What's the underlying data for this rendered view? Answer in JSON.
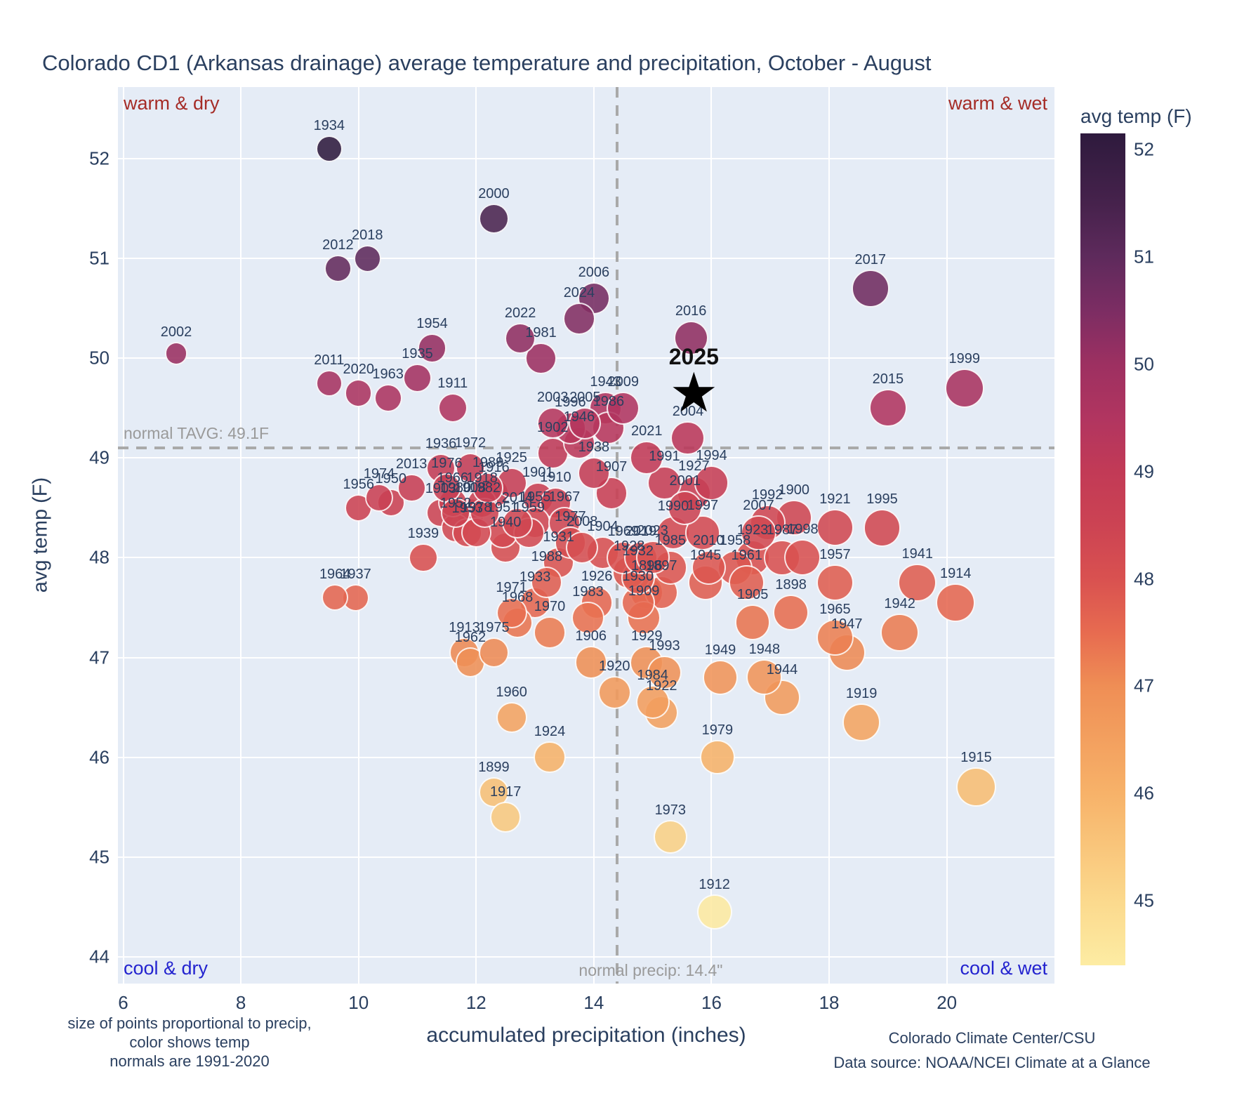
{
  "title": "Colorado CD1 (Arkansas drainage) average temperature and precipitation, October - August",
  "corner_labels": {
    "top_left": "warm & dry",
    "top_right": "warm & wet",
    "bottom_left": "cool & dry",
    "bottom_right": "cool & wet"
  },
  "annotations": {
    "normal_tavg_label": "normal TAVG: 49.1F",
    "normal_precip_label": "normal precip: 14.4\"",
    "star_label": "2025"
  },
  "axes": {
    "x_title": "accumulated precipitation (inches)",
    "y_title": "avg temp (F)",
    "x_ticks": [
      6,
      8,
      10,
      12,
      14,
      16,
      18,
      20
    ],
    "y_ticks": [
      52,
      51,
      50,
      49,
      48,
      47,
      46,
      45,
      44
    ]
  },
  "colorbar": {
    "title": "avg temp (F)",
    "ticks": [
      52,
      51,
      50,
      49,
      48,
      47,
      46,
      45
    ],
    "min": 44.4,
    "max": 52.15,
    "stops": [
      [
        44.4,
        "#fdeca3"
      ],
      [
        45.0,
        "#fbd98d"
      ],
      [
        46.0,
        "#f7b269"
      ],
      [
        47.0,
        "#ef8e55"
      ],
      [
        47.5,
        "#e76b50"
      ],
      [
        48.0,
        "#d95150"
      ],
      [
        48.5,
        "#cc4353"
      ],
      [
        49.0,
        "#c23a56"
      ],
      [
        49.5,
        "#b13560"
      ],
      [
        50.0,
        "#9d3061"
      ],
      [
        50.5,
        "#7c2d63"
      ],
      [
        51.0,
        "#5e2a5c"
      ],
      [
        51.5,
        "#46224c"
      ],
      [
        52.15,
        "#2e1a3d"
      ]
    ]
  },
  "footnotes": {
    "line1": "size of points proportional to precip,",
    "line2": "color shows temp",
    "line3": "normals are 1991-2020"
  },
  "credits": {
    "line1": "Colorado Climate Center/CSU",
    "line2": "Data source: NOAA/NCEI Climate at a Glance"
  },
  "chart_data": {
    "type": "scatter",
    "title": "Colorado CD1 (Arkansas drainage) average temperature and precipitation, October - August",
    "xlabel": "accumulated precipitation (inches)",
    "ylabel": "avg temp (F)",
    "xlim": [
      5.91,
      21.83
    ],
    "ylim": [
      43.73,
      52.72
    ],
    "grid": true,
    "normal_tavg": 49.1,
    "normal_precip": 14.4,
    "color_by": "temp_f",
    "size_by": "precip_in",
    "star": {
      "year": 2025,
      "precip_in": 15.7,
      "temp_f": 49.7
    },
    "columns": [
      "year",
      "precip_in",
      "temp_f"
    ],
    "points": [
      [
        1896,
        14.9,
        47.65
      ],
      [
        1897,
        15.15,
        47.65
      ],
      [
        1898,
        17.35,
        47.45
      ],
      [
        1899,
        12.3,
        45.65
      ],
      [
        1900,
        17.4,
        48.4
      ],
      [
        1901,
        13.05,
        48.6
      ],
      [
        1902,
        13.3,
        49.05
      ],
      [
        1903,
        11.4,
        48.45
      ],
      [
        1904,
        14.15,
        48.05
      ],
      [
        1905,
        16.7,
        47.35
      ],
      [
        1906,
        13.95,
        46.95
      ],
      [
        1907,
        14.3,
        48.65
      ],
      [
        1908,
        11.9,
        48.45
      ],
      [
        1909,
        14.85,
        47.4
      ],
      [
        1910,
        13.35,
        48.55
      ],
      [
        1911,
        11.6,
        49.5
      ],
      [
        1912,
        16.05,
        44.45
      ],
      [
        1913,
        11.8,
        47.05
      ],
      [
        1914,
        20.15,
        47.55
      ],
      [
        1915,
        20.5,
        45.7
      ],
      [
        1916,
        12.3,
        48.65
      ],
      [
        1917,
        12.5,
        45.4
      ],
      [
        1918,
        12.1,
        48.55
      ],
      [
        1919,
        18.55,
        46.35
      ],
      [
        1920,
        14.35,
        46.65
      ],
      [
        1921,
        18.1,
        48.3
      ],
      [
        1922,
        15.15,
        46.45
      ],
      [
        1923,
        16.7,
        48.0
      ],
      [
        1924,
        13.25,
        46.0
      ],
      [
        1925,
        12.6,
        48.75
      ],
      [
        1926,
        14.05,
        47.55
      ],
      [
        1927,
        15.7,
        48.65
      ],
      [
        1928,
        14.6,
        47.85
      ],
      [
        1929,
        14.9,
        46.95
      ],
      [
        1930,
        14.75,
        47.55
      ],
      [
        1931,
        13.4,
        47.95
      ],
      [
        1932,
        14.75,
        47.8
      ],
      [
        1933,
        13.0,
        47.55
      ],
      [
        1934,
        9.5,
        52.1
      ],
      [
        1935,
        11.0,
        49.8
      ],
      [
        1936,
        11.4,
        48.9
      ],
      [
        1937,
        9.95,
        47.6
      ],
      [
        1938,
        14.0,
        48.85
      ],
      [
        1939,
        11.1,
        48.0
      ],
      [
        1940,
        12.5,
        48.1
      ],
      [
        1941,
        19.5,
        47.75
      ],
      [
        1942,
        19.2,
        47.25
      ],
      [
        1943,
        14.2,
        49.5
      ],
      [
        1944,
        17.2,
        46.6
      ],
      [
        1945,
        15.9,
        47.75
      ],
      [
        1946,
        13.75,
        49.15
      ],
      [
        1947,
        18.3,
        47.05
      ],
      [
        1948,
        16.9,
        46.8
      ],
      [
        1949,
        16.15,
        46.8
      ],
      [
        1950,
        10.55,
        48.55
      ],
      [
        1951,
        12.45,
        48.25
      ],
      [
        1952,
        11.65,
        48.3
      ],
      [
        1953,
        11.85,
        48.25
      ],
      [
        1954,
        11.25,
        50.1
      ],
      [
        1955,
        13.0,
        48.35
      ],
      [
        1956,
        10.0,
        48.5
      ],
      [
        1957,
        18.1,
        47.75
      ],
      [
        1958,
        16.4,
        47.9
      ],
      [
        1959,
        12.9,
        48.25
      ],
      [
        1960,
        12.6,
        46.4
      ],
      [
        1961,
        16.6,
        47.75
      ],
      [
        1962,
        11.9,
        46.95
      ],
      [
        1963,
        10.5,
        49.6
      ],
      [
        1964,
        9.6,
        47.6
      ],
      [
        1965,
        18.1,
        47.2
      ],
      [
        1966,
        11.6,
        48.55
      ],
      [
        1967,
        13.5,
        48.35
      ],
      [
        1968,
        12.7,
        47.35
      ],
      [
        1969,
        14.5,
        48.0
      ],
      [
        1970,
        13.25,
        47.25
      ],
      [
        1971,
        12.6,
        47.45
      ],
      [
        1972,
        11.9,
        48.9
      ],
      [
        1973,
        15.3,
        45.2
      ],
      [
        1974,
        10.35,
        48.6
      ],
      [
        1975,
        12.3,
        47.05
      ],
      [
        1976,
        11.5,
        48.7
      ],
      [
        1977,
        13.6,
        48.15
      ],
      [
        1978,
        12.0,
        48.25
      ],
      [
        1979,
        16.1,
        46.0
      ],
      [
        1980,
        11.65,
        48.45
      ],
      [
        1981,
        13.1,
        50.0
      ],
      [
        1982,
        12.15,
        48.45
      ],
      [
        1983,
        13.9,
        47.4
      ],
      [
        1984,
        15.0,
        46.55
      ],
      [
        1985,
        15.3,
        47.9
      ],
      [
        1986,
        14.25,
        49.3
      ],
      [
        1987,
        17.2,
        48.0
      ],
      [
        1988,
        13.2,
        47.75
      ],
      [
        1989,
        12.2,
        48.7
      ],
      [
        1990,
        15.35,
        48.25
      ],
      [
        1991,
        15.2,
        48.75
      ],
      [
        1992,
        16.95,
        48.35
      ],
      [
        1993,
        15.2,
        46.85
      ],
      [
        1994,
        16.0,
        48.75
      ],
      [
        1995,
        18.9,
        48.3
      ],
      [
        1996,
        13.6,
        49.3
      ],
      [
        1997,
        15.85,
        48.25
      ],
      [
        1998,
        17.55,
        48.0
      ],
      [
        1999,
        20.3,
        49.7
      ],
      [
        2000,
        12.3,
        51.4
      ],
      [
        2001,
        15.55,
        48.5
      ],
      [
        2002,
        6.9,
        50.05
      ],
      [
        2003,
        13.3,
        49.35
      ],
      [
        2004,
        15.6,
        49.2
      ],
      [
        2005,
        13.85,
        49.35
      ],
      [
        2006,
        14.0,
        50.6
      ],
      [
        2007,
        16.8,
        48.25
      ],
      [
        2008,
        13.8,
        48.1
      ],
      [
        2009,
        14.5,
        49.5
      ],
      [
        2010,
        15.95,
        47.9
      ],
      [
        2011,
        9.5,
        49.75
      ],
      [
        2012,
        9.65,
        50.9
      ],
      [
        2013,
        10.9,
        48.7
      ],
      [
        2014,
        12.7,
        48.35
      ],
      [
        2015,
        19.0,
        49.5
      ],
      [
        2016,
        15.65,
        50.2
      ],
      [
        2017,
        18.7,
        50.7
      ],
      [
        2018,
        10.15,
        51.0
      ],
      [
        2019,
        14.8,
        48.0
      ],
      [
        2020,
        10.0,
        49.65
      ],
      [
        2021,
        14.9,
        49.0
      ],
      [
        2022,
        12.75,
        50.2
      ],
      [
        2023,
        15.0,
        48.0
      ],
      [
        2024,
        13.75,
        50.4
      ]
    ]
  }
}
